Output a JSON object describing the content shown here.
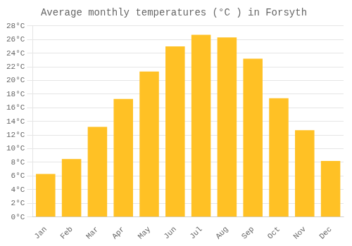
{
  "chart_data": {
    "type": "bar",
    "title": "Average monthly temperatures (°C ) in Forsyth",
    "categories": [
      "Jan",
      "Feb",
      "Mar",
      "Apr",
      "May",
      "Jun",
      "Jul",
      "Aug",
      "Sep",
      "Oct",
      "Nov",
      "Dec"
    ],
    "values": [
      6.3,
      8.5,
      13.2,
      17.3,
      21.3,
      25.0,
      26.7,
      26.3,
      23.2,
      17.4,
      12.7,
      8.2
    ],
    "color": "#FFC125",
    "ylim": [
      0,
      28
    ],
    "yticks": [
      {
        "value": 0,
        "label": "0°C"
      },
      {
        "value": 2,
        "label": "2°C"
      },
      {
        "value": 4,
        "label": "4°C"
      },
      {
        "value": 6,
        "label": "6°C"
      },
      {
        "value": 8,
        "label": "8°C"
      },
      {
        "value": 10,
        "label": "10°C"
      },
      {
        "value": 12,
        "label": "12°C"
      },
      {
        "value": 14,
        "label": "14°C"
      },
      {
        "value": 16,
        "label": "16°C"
      },
      {
        "value": 18,
        "label": "18°C"
      },
      {
        "value": 20,
        "label": "20°C"
      },
      {
        "value": 22,
        "label": "22°C"
      },
      {
        "value": 24,
        "label": "24°C"
      },
      {
        "value": 26,
        "label": "26°C"
      },
      {
        "value": 28,
        "label": "28°C"
      }
    ],
    "grid": true
  }
}
